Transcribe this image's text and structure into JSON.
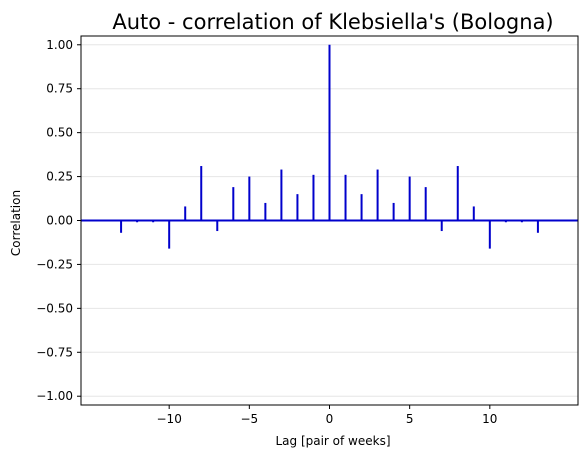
{
  "chart_data": {
    "type": "bar",
    "title": "Auto - correlation of Klebsiella's (Bologna)",
    "xlabel": "Lag [pair of weeks]",
    "ylabel": "Correlation",
    "xlim": [
      -15.5,
      15.5
    ],
    "ylim": [
      -1.05,
      1.05
    ],
    "x_ticks": [
      -10,
      -5,
      0,
      5,
      10
    ],
    "x_tick_labels": [
      "−10",
      "−5",
      "0",
      "5",
      "10"
    ],
    "y_ticks": [
      1.0,
      0.75,
      0.5,
      0.25,
      0.0,
      -0.25,
      -0.5,
      -0.75,
      -1.0
    ],
    "y_tick_labels": [
      "1.00",
      "0.75",
      "0.50",
      "0.25",
      "0.00",
      "−0.25",
      "−0.50",
      "−0.75",
      "−1.00"
    ],
    "grid": "horizontal",
    "lags": [
      -13,
      -12,
      -11,
      -10,
      -9,
      -8,
      -7,
      -6,
      -5,
      -4,
      -3,
      -2,
      -1,
      0,
      1,
      2,
      3,
      4,
      5,
      6,
      7,
      8,
      9,
      10,
      11,
      12,
      13
    ],
    "values": [
      -0.07,
      -0.01,
      -0.01,
      -0.16,
      0.08,
      0.31,
      -0.06,
      0.19,
      0.25,
      0.1,
      0.29,
      0.15,
      0.26,
      1.0,
      0.26,
      0.15,
      0.29,
      0.1,
      0.25,
      0.19,
      -0.06,
      0.31,
      0.08,
      -0.16,
      -0.01,
      -0.01,
      -0.07
    ],
    "colors": {
      "stem": "#0000cc",
      "zero_line": "#0000cc",
      "grid": "#e6e6e6"
    }
  }
}
